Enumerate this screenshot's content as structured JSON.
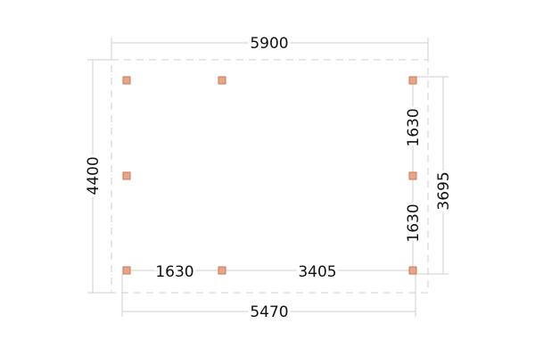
{
  "colors": {
    "post": "#e9a584",
    "dimension_line": "#cfcfcf",
    "text": "#111111"
  },
  "dimensions": {
    "overall_width": "5900",
    "overall_depth": "4400",
    "post_depth": "3695",
    "post_width": "5470",
    "bottom_span_left": "1630",
    "bottom_span_right": "3405",
    "right_span_top": "1630",
    "right_span_bottom": "1630"
  }
}
